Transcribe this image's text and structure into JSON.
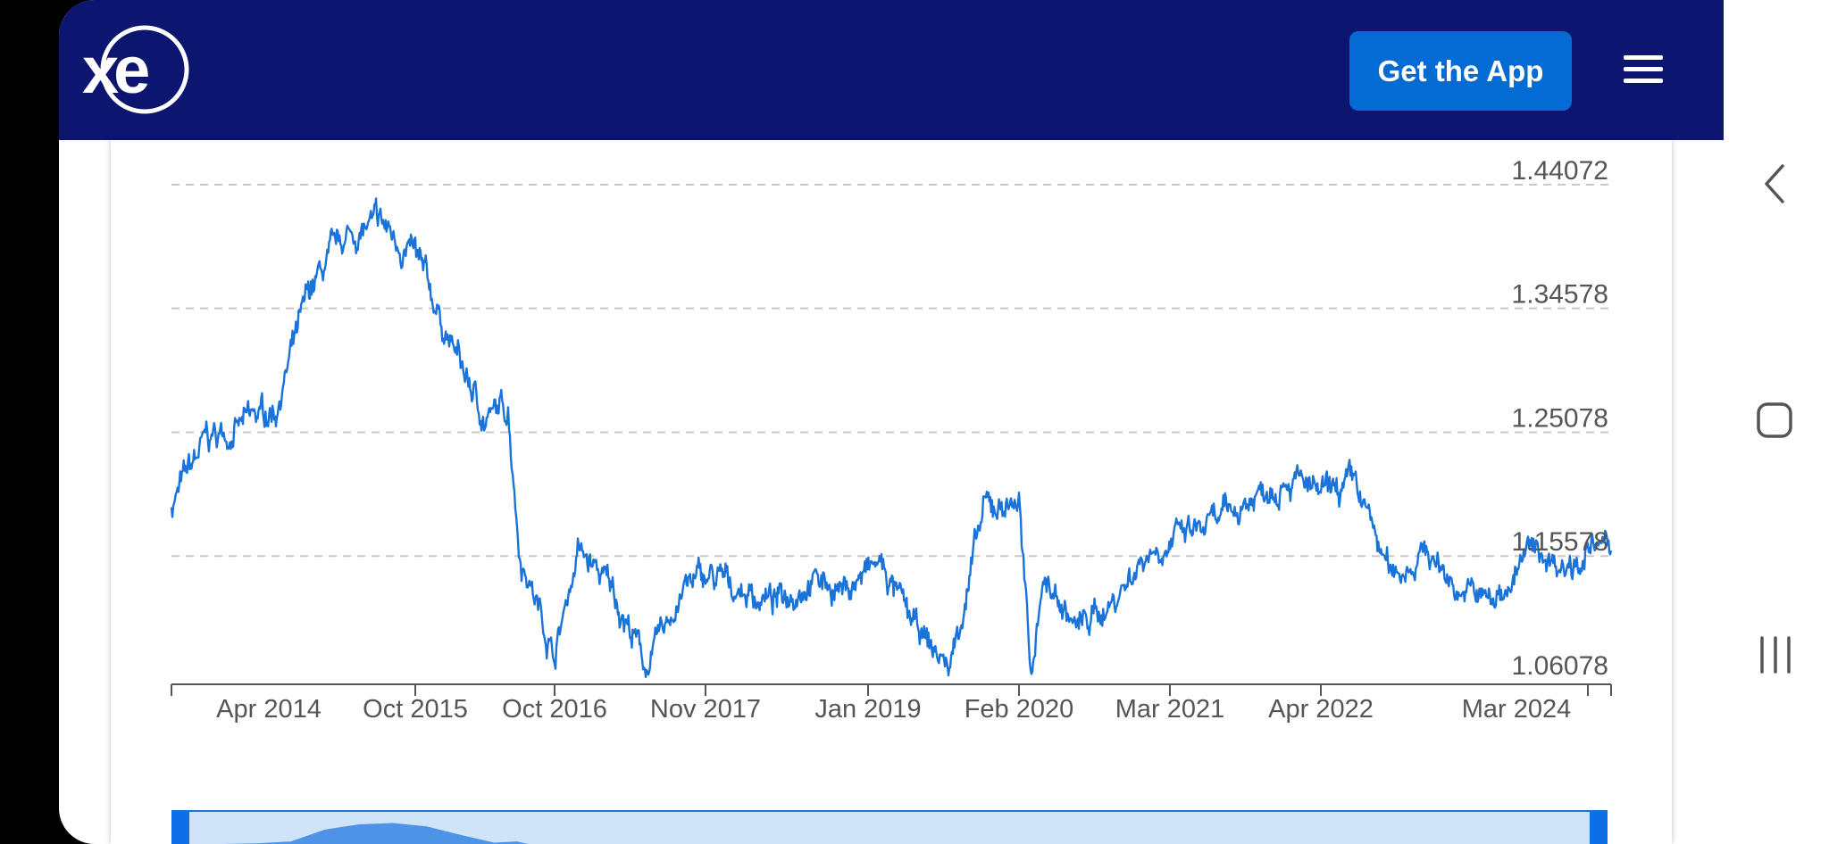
{
  "app": {
    "brand": "xe",
    "cta_label": "Get the App",
    "menu_icon": "hamburger-menu-icon",
    "header_color": "#0c1570",
    "cta_color": "#046bd4"
  },
  "chart_data": {
    "type": "line",
    "title": "",
    "xlabel": "",
    "ylabel": "",
    "x_ticks": [
      "Apr 2014",
      "Oct 2015",
      "Oct 2016",
      "Nov 2017",
      "Jan 2019",
      "Feb 2020",
      "Mar 2021",
      "Apr 2022",
      "Mar 2024"
    ],
    "y_ticks": [
      "1.44072",
      "1.34578",
      "1.25078",
      "1.15578",
      "1.06078"
    ],
    "ylim": [
      1.06078,
      1.44072
    ],
    "grid": "horizontal dashed",
    "line_color": "#1a73d9",
    "series": [
      {
        "x": [
          "2014-01",
          "2014-04",
          "2014-07",
          "2014-10",
          "2015-01",
          "2015-04",
          "2015-07",
          "2015-10",
          "2016-01",
          "2016-04",
          "2016-06",
          "2016-07",
          "2016-10",
          "2016-12",
          "2017-03",
          "2017-06",
          "2017-09",
          "2017-11",
          "2018-02",
          "2018-05",
          "2018-08",
          "2018-11",
          "2019-02",
          "2019-05",
          "2019-08",
          "2019-11",
          "2020-02",
          "2020-03",
          "2020-04",
          "2020-07",
          "2020-10",
          "2021-01",
          "2021-04",
          "2021-07",
          "2021-10",
          "2022-01",
          "2022-04",
          "2022-07",
          "2022-10",
          "2023-01",
          "2023-04",
          "2023-07",
          "2023-10",
          "2024-01",
          "2024-03",
          "2024-05"
        ],
        "y": [
          1.195,
          1.245,
          1.255,
          1.27,
          1.36,
          1.4,
          1.41,
          1.385,
          1.32,
          1.26,
          1.27,
          1.16,
          1.08,
          1.16,
          1.13,
          1.07,
          1.13,
          1.14,
          1.13,
          1.12,
          1.14,
          1.13,
          1.15,
          1.1,
          1.07,
          1.19,
          1.2,
          1.06,
          1.14,
          1.1,
          1.12,
          1.16,
          1.17,
          1.18,
          1.2,
          1.22,
          1.2,
          1.21,
          1.14,
          1.16,
          1.13,
          1.12,
          1.16,
          1.15,
          1.16,
          1.16
        ]
      }
    ]
  },
  "nav": {
    "back_icon": "back-chevron-icon",
    "home_icon": "home-square-icon",
    "recents_icon": "recents-bars-icon"
  }
}
